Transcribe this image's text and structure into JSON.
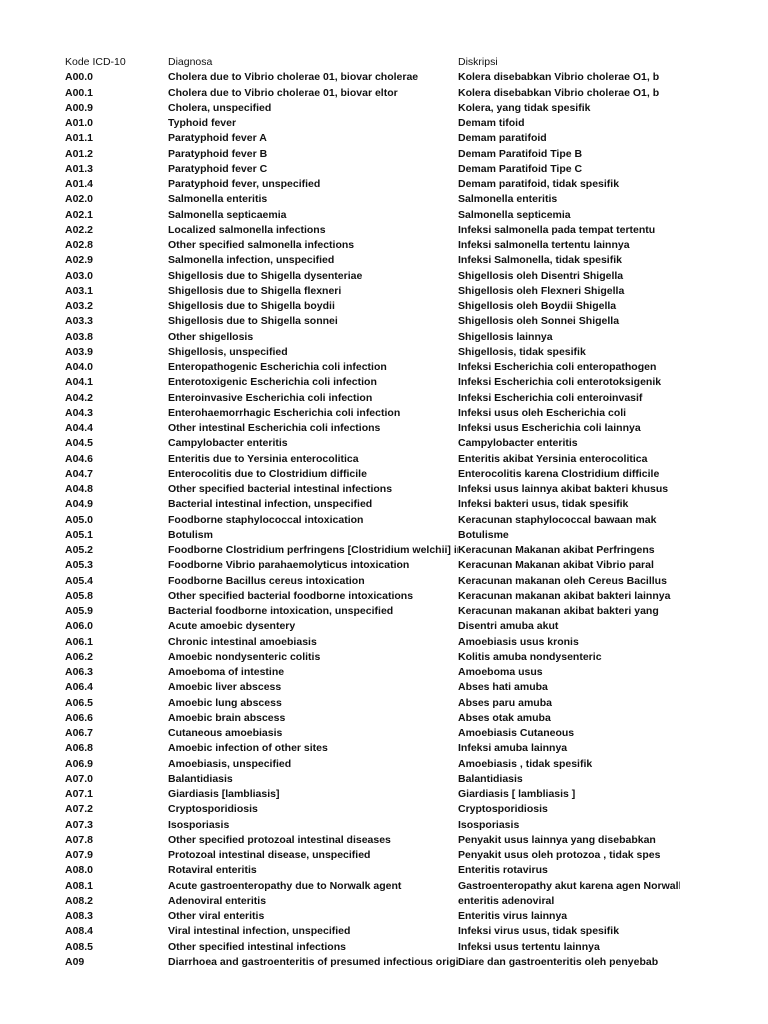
{
  "headers": {
    "code": "Kode ICD-10",
    "diagnosis": "Diagnosa",
    "description": "Diskripsi"
  },
  "rows": [
    [
      "A00.0",
      "Cholera due to Vibrio cholerae 01, biovar cholerae",
      "Kolera disebabkan Vibrio cholerae O1, b"
    ],
    [
      "A00.1",
      "Cholera due to Vibrio cholerae 01, biovar eltor",
      "Kolera disebabkan Vibrio cholerae O1, b"
    ],
    [
      "A00.9",
      "Cholera, unspecified",
      "Kolera, yang tidak spesifik"
    ],
    [
      "A01.0",
      "Typhoid fever",
      "Demam tifoid"
    ],
    [
      "A01.1",
      "Paratyphoid fever A",
      "Demam paratifoid"
    ],
    [
      "A01.2",
      "Paratyphoid fever B",
      "Demam Paratifoid Tipe B"
    ],
    [
      "A01.3",
      "Paratyphoid fever C",
      "Demam Paratifoid Tipe C"
    ],
    [
      "A01.4",
      "Paratyphoid fever, unspecified",
      "Demam paratifoid, tidak spesifik"
    ],
    [
      "A02.0",
      "Salmonella enteritis",
      "Salmonella enteritis"
    ],
    [
      "A02.1",
      "Salmonella septicaemia",
      "Salmonella septicemia"
    ],
    [
      "A02.2",
      "Localized salmonella infections",
      "Infeksi salmonella pada tempat tertentu"
    ],
    [
      "A02.8",
      "Other specified salmonella infections",
      "Infeksi salmonella tertentu lainnya"
    ],
    [
      "A02.9",
      "Salmonella infection, unspecified",
      "Infeksi Salmonella, tidak spesifik"
    ],
    [
      "A03.0",
      "Shigellosis due to Shigella dysenteriae",
      "Shigellosis oleh Disentri Shigella"
    ],
    [
      "A03.1",
      "Shigellosis due to Shigella flexneri",
      "Shigellosis oleh Flexneri Shigella"
    ],
    [
      "A03.2",
      "Shigellosis due to Shigella boydii",
      "Shigellosis oleh Boydii Shigella"
    ],
    [
      "A03.3",
      "Shigellosis due to Shigella sonnei",
      "Shigellosis oleh Sonnei Shigella"
    ],
    [
      "A03.8",
      "Other shigellosis",
      "Shigellosis lainnya"
    ],
    [
      "A03.9",
      "Shigellosis, unspecified",
      "Shigellosis, tidak spesifik"
    ],
    [
      "A04.0",
      "Enteropathogenic Escherichia coli infection",
      "Infeksi Escherichia coli enteropathogen"
    ],
    [
      "A04.1",
      "Enterotoxigenic Escherichia coli infection",
      "Infeksi Escherichia coli enterotoksigenik"
    ],
    [
      "A04.2",
      "Enteroinvasive Escherichia coli infection",
      "Infeksi Escherichia coli enteroinvasif"
    ],
    [
      "A04.3",
      "Enterohaemorrhagic Escherichia coli infection",
      "Infeksi usus oleh Escherichia coli"
    ],
    [
      "A04.4",
      "Other intestinal Escherichia coli infections",
      "Infeksi usus Escherichia coli lainnya"
    ],
    [
      "A04.5",
      "Campylobacter enteritis",
      "Campylobacter enteritis"
    ],
    [
      "A04.6",
      "Enteritis due to Yersinia enterocolitica",
      "Enteritis akibat Yersinia enterocolitica"
    ],
    [
      "A04.7",
      "Enterocolitis due to Clostridium difficile",
      "Enterocolitis karena Clostridium difficile"
    ],
    [
      "A04.8",
      "Other specified bacterial intestinal infections",
      "Infeksi usus lainnya akibat bakteri khusus"
    ],
    [
      "A04.9",
      "Bacterial intestinal infection, unspecified",
      "Infeksi bakteri usus, tidak spesifik"
    ],
    [
      "A05.0",
      "Foodborne staphylococcal intoxication",
      "Keracunan staphylococcal bawaan mak"
    ],
    [
      "A05.1",
      "Botulism",
      "Botulisme"
    ],
    [
      "A05.2",
      "Foodborne Clostridium perfringens [Clostridium welchii] intoxication",
      "Keracunan Makanan akibat Perfringens"
    ],
    [
      "A05.3",
      "Foodborne Vibrio parahaemolyticus intoxication",
      "Keracunan Makanan akibat Vibrio paral"
    ],
    [
      "A05.4",
      "Foodborne Bacillus cereus intoxication",
      "Keracunan makanan oleh Cereus Bacillus"
    ],
    [
      "A05.8",
      "Other specified bacterial foodborne intoxications",
      "Keracunan makanan akibat bakteri lainnya"
    ],
    [
      "A05.9",
      "Bacterial foodborne intoxication, unspecified",
      "Keracunan makanan akibat bakteri yang"
    ],
    [
      "A06.0",
      "Acute amoebic dysentery",
      "Disentri amuba akut"
    ],
    [
      "A06.1",
      "Chronic intestinal amoebiasis",
      "Amoebiasis usus kronis"
    ],
    [
      "A06.2",
      "Amoebic nondysenteric colitis",
      "Kolitis amuba nondysenteric"
    ],
    [
      "A06.3",
      "Amoeboma of intestine",
      "Amoeboma usus"
    ],
    [
      "A06.4",
      "Amoebic liver abscess",
      "Abses hati amuba"
    ],
    [
      "A06.5",
      "Amoebic lung abscess",
      "Abses paru amuba"
    ],
    [
      "A06.6",
      "Amoebic brain abscess",
      "Abses otak amuba"
    ],
    [
      "A06.7",
      "Cutaneous amoebiasis",
      "Amoebiasis Cutaneous"
    ],
    [
      "A06.8",
      "Amoebic infection of other sites",
      "Infeksi amuba lainnya"
    ],
    [
      "A06.9",
      "Amoebiasis, unspecified",
      "Amoebiasis , tidak spesifik"
    ],
    [
      "A07.0",
      "Balantidiasis",
      "Balantidiasis"
    ],
    [
      "A07.1",
      "Giardiasis [lambliasis]",
      "Giardiasis [ lambliasis ]"
    ],
    [
      "A07.2",
      "Cryptosporidiosis",
      "Cryptosporidiosis"
    ],
    [
      "A07.3",
      "Isosporiasis",
      "Isosporiasis"
    ],
    [
      "A07.8",
      "Other specified protozoal intestinal diseases",
      "Penyakit usus lainnya yang disebabkan"
    ],
    [
      "A07.9",
      "Protozoal intestinal disease, unspecified",
      "Penyakit usus oleh protozoa , tidak spes"
    ],
    [
      "A08.0",
      "Rotaviral enteritis",
      "Enteritis rotavirus"
    ],
    [
      "A08.1",
      "Acute gastroenteropathy due to Norwalk agent",
      "Gastroenteropathy akut karena agen Norwalk"
    ],
    [
      "A08.2",
      "Adenoviral enteritis",
      "enteritis adenoviral"
    ],
    [
      "A08.3",
      "Other viral enteritis",
      "Enteritis virus lainnya"
    ],
    [
      "A08.4",
      "Viral intestinal infection, unspecified",
      "Infeksi virus  usus, tidak spesifik"
    ],
    [
      "A08.5",
      "Other specified intestinal infections",
      "Infeksi usus tertentu lainnya"
    ],
    [
      "A09",
      "Diarrhoea and gastroenteritis of presumed infectious origin",
      "Diare dan gastroenteritis oleh penyebab"
    ]
  ]
}
